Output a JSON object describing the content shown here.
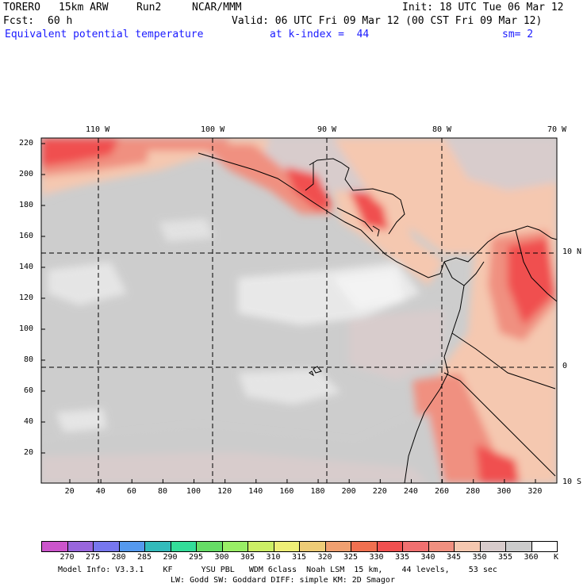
{
  "header": {
    "model": "TORERO",
    "resolution": "15km ARW",
    "run": "Run2",
    "org": "NCAR/MMM",
    "init": "Init: 18 UTC Tue 06 Mar 12",
    "fcst_label": "Fcst:",
    "fcst_hours": "60 h",
    "valid": "Valid: 06 UTC Fri 09 Mar 12 (00 CST Fri 09 Mar 12)",
    "field": "Equivalent potential temperature",
    "level": "at k-index =  44",
    "smoothing": "sm= 2"
  },
  "map": {
    "top_lon_labels": [
      "110 W",
      "100 W",
      "90 W",
      "80 W",
      "70 W"
    ],
    "right_lat_labels": [
      "10 N",
      "0",
      "10 S"
    ],
    "left_y_ticks": [
      "20",
      "40",
      "60",
      "80",
      "100",
      "120",
      "140",
      "160",
      "180",
      "200",
      "220"
    ],
    "bottom_x_ticks": [
      "20",
      "40",
      "60",
      "80",
      "100",
      "120",
      "140",
      "160",
      "180",
      "200",
      "220",
      "240",
      "260",
      "280",
      "300",
      "320"
    ]
  },
  "colorbar": {
    "labels": [
      "270",
      "275",
      "280",
      "285",
      "290",
      "295",
      "300",
      "305",
      "310",
      "315",
      "320",
      "325",
      "330",
      "335",
      "340",
      "345",
      "350",
      "355",
      "360"
    ],
    "unit": "K",
    "colors": [
      "#cc55cc",
      "#9966dd",
      "#7777ee",
      "#5599ee",
      "#33bbbb",
      "#33dd99",
      "#66dd66",
      "#99ee66",
      "#ccee66",
      "#eeee77",
      "#eecc77",
      "#f0a070",
      "#f07050",
      "#f05050",
      "#f07070",
      "#f09080",
      "#f5c8b0",
      "#d8cccc",
      "#cccccc",
      "#ffffff"
    ]
  },
  "footer": {
    "line1": "Model Info: V3.3.1    KF      YSU PBL   WDM 6class  Noah LSM  15 km,    44 levels,    53 sec",
    "line2": "LW: Godd SW: Goddard DIFF: simple KM: 2D Smagor"
  }
}
